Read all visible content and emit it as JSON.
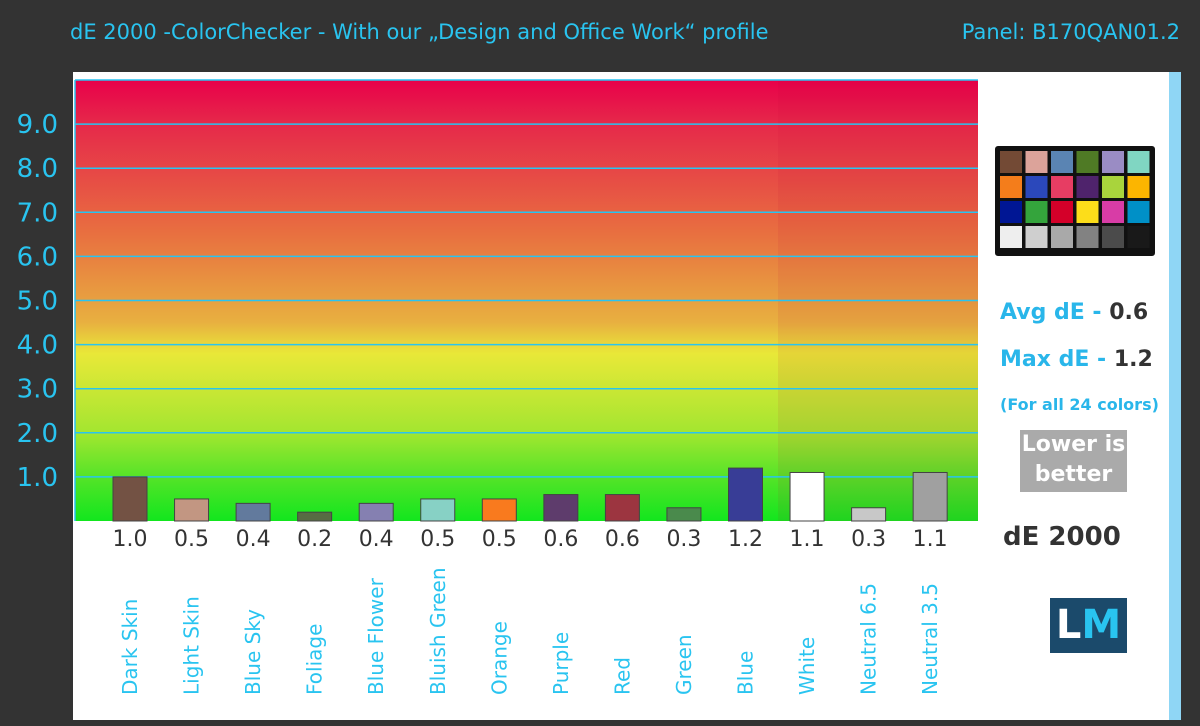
{
  "header": {
    "title": "dE 2000 -ColorChecker - With our „Design and Office Work“ profile",
    "panel": "Panel: B170QAN01.2"
  },
  "stats": {
    "avg_label": "Avg dE - ",
    "avg": "0.6",
    "max_label": "Max dE - ",
    "max": "1.2",
    "note": "(For all 24 colors)",
    "lower1": "Lower is",
    "lower2": "better",
    "metric": "dE 2000"
  },
  "logo": "LM",
  "accent": "#29c4f0",
  "chart_data": {
    "type": "bar",
    "ylim": [
      0,
      10
    ],
    "yticks": [
      "1.0",
      "2.0",
      "3.0",
      "4.0",
      "5.0",
      "6.0",
      "7.0",
      "8.0",
      "9.0"
    ],
    "grid": true,
    "categories": [
      "Dark Skin",
      "Light Skin",
      "Blue Sky",
      "Foliage",
      "Blue Flower",
      "Bluish Green",
      "Orange",
      "Purple",
      "Red",
      "Green",
      "Blue",
      "White",
      "Neutral 6.5",
      "Neutral 3.5"
    ],
    "values": [
      1.0,
      0.5,
      0.4,
      0.2,
      0.4,
      0.5,
      0.5,
      0.6,
      0.6,
      0.3,
      1.2,
      1.1,
      0.3,
      1.1
    ],
    "labels": [
      "1.0",
      "0.5",
      "0.4",
      "0.2",
      "0.4",
      "0.5",
      "0.5",
      "0.6",
      "0.6",
      "0.3",
      "1.2",
      "1.1",
      "0.3",
      "1.1"
    ],
    "colors": [
      "#735244",
      "#c29682",
      "#627a9d",
      "#576c43",
      "#8580b1",
      "#87d1c5",
      "#f97a1e",
      "#5e3c6c",
      "#9c3540",
      "#4a8a4c",
      "#383d96",
      "#ffffff",
      "#c8c8c8",
      "#a0a0a0"
    ]
  },
  "checker": [
    "#734a35",
    "#dca39a",
    "#5a84b3",
    "#4f7a25",
    "#9a8cc4",
    "#80d6c2",
    "#f47d1b",
    "#2b48bb",
    "#e73d63",
    "#4f236c",
    "#a9d43c",
    "#fcb500",
    "#001694",
    "#34a43c",
    "#d40029",
    "#fcdd1a",
    "#d83ca6",
    "#0090c7",
    "#eeeeee",
    "#cfcfcf",
    "#a9a9a9",
    "#828282",
    "#4b4b4b",
    "#191919"
  ]
}
